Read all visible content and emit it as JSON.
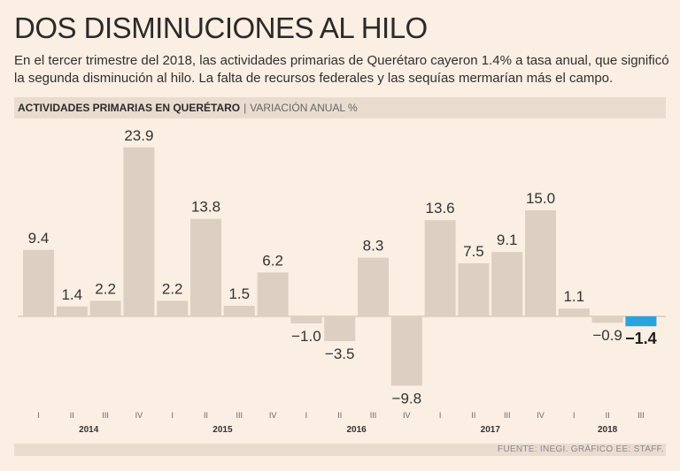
{
  "header": {
    "title": "DOS DISMINUCIONES AL HILO",
    "subtitle": "En el tercer trimestre del 2018, las actividades primarias de Querétaro cayeron 1.4% a tasa anual, que significó la segunda disminución al hilo. La falta de recursos federales y las sequías mermarían más el campo."
  },
  "chart_header": {
    "main": "ACTIVIDADES PRIMARIAS EN QUERÉTARO",
    "separator": "|",
    "sub": "VARIACIÓN ANUAL %"
  },
  "source": "FUENTE: INEGI. GRÁFICO EE: STAFF.",
  "colors": {
    "bar": "#ddcfc2",
    "highlight": "#27a4dc",
    "axis": "#c9b9aa"
  },
  "chart_data": {
    "type": "bar",
    "title": "ACTIVIDADES PRIMARIAS EN QUERÉTARO",
    "ylabel": "VARIACIÓN ANUAL %",
    "categories": [
      "I",
      "II",
      "III",
      "IV",
      "I",
      "II",
      "III",
      "IV",
      "I",
      "II",
      "III",
      "IV",
      "I",
      "II",
      "III",
      "IV",
      "I",
      "II",
      "III"
    ],
    "years": [
      {
        "label": "2014",
        "start": 0,
        "count": 4
      },
      {
        "label": "2015",
        "start": 4,
        "count": 4
      },
      {
        "label": "2016",
        "start": 8,
        "count": 4
      },
      {
        "label": "2017",
        "start": 12,
        "count": 4
      },
      {
        "label": "2018",
        "start": 16,
        "count": 3
      }
    ],
    "values": [
      9.4,
      1.4,
      2.2,
      23.9,
      2.2,
      13.8,
      1.5,
      6.2,
      -1.0,
      -3.5,
      8.3,
      -9.8,
      13.6,
      7.5,
      9.1,
      15.0,
      1.1,
      -0.9,
      -1.4
    ],
    "value_labels": [
      "9.4",
      "1.4",
      "2.2",
      "23.9",
      "2.2",
      "13.8",
      "1.5",
      "6.2",
      "−1.0",
      "−3.5",
      "8.3",
      "−9.8",
      "13.6",
      "7.5",
      "9.1",
      "15.0",
      "1.1",
      "−0.9",
      "−1.4"
    ],
    "highlight_index": 18,
    "ylim": [
      -10,
      25
    ],
    "grid": false,
    "legend": "none"
  }
}
